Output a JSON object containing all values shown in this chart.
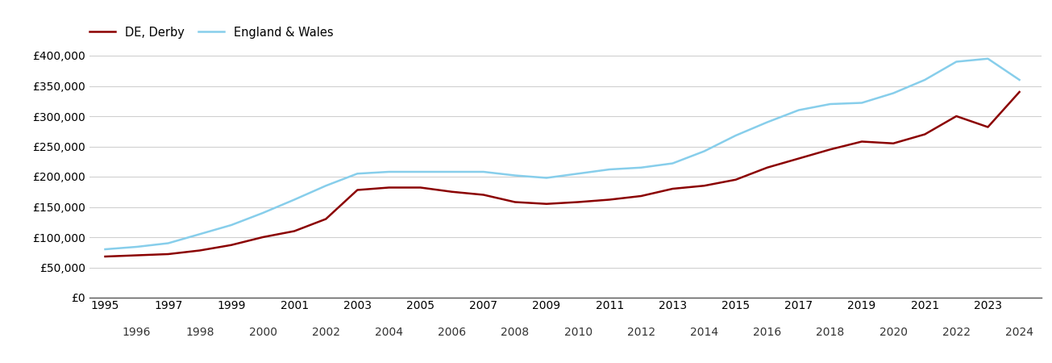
{
  "derby_years": [
    1995,
    1996,
    1997,
    1998,
    1999,
    2000,
    2001,
    2002,
    2003,
    2004,
    2005,
    2006,
    2007,
    2008,
    2009,
    2010,
    2011,
    2012,
    2013,
    2014,
    2015,
    2016,
    2017,
    2018,
    2019,
    2020,
    2021,
    2022,
    2023,
    2024
  ],
  "derby_values": [
    68000,
    70000,
    72000,
    78000,
    87000,
    100000,
    110000,
    130000,
    178000,
    182000,
    182000,
    175000,
    170000,
    158000,
    155000,
    158000,
    162000,
    168000,
    180000,
    185000,
    195000,
    215000,
    230000,
    245000,
    258000,
    255000,
    270000,
    300000,
    282000,
    340000
  ],
  "ew_years": [
    1995,
    1996,
    1997,
    1998,
    1999,
    2000,
    2001,
    2002,
    2003,
    2004,
    2005,
    2006,
    2007,
    2008,
    2009,
    2010,
    2011,
    2012,
    2013,
    2014,
    2015,
    2016,
    2017,
    2018,
    2019,
    2020,
    2021,
    2022,
    2023,
    2024
  ],
  "ew_values": [
    80000,
    84000,
    90000,
    105000,
    120000,
    140000,
    162000,
    185000,
    205000,
    208000,
    208000,
    208000,
    208000,
    202000,
    198000,
    205000,
    212000,
    215000,
    222000,
    242000,
    268000,
    290000,
    310000,
    320000,
    322000,
    338000,
    360000,
    390000,
    395000,
    360000
  ],
  "derby_color": "#8B0000",
  "ew_color": "#87CEEB",
  "derby_label": "DE, Derby",
  "ew_label": "England & Wales",
  "ylim": [
    0,
    420000
  ],
  "yticks": [
    0,
    50000,
    100000,
    150000,
    200000,
    250000,
    300000,
    350000,
    400000
  ],
  "xlim_min": 1994.5,
  "xlim_max": 2024.7,
  "background_color": "#ffffff",
  "grid_color": "#d0d0d0",
  "line_width": 1.8,
  "legend_fontsize": 10.5,
  "tick_fontsize": 10
}
